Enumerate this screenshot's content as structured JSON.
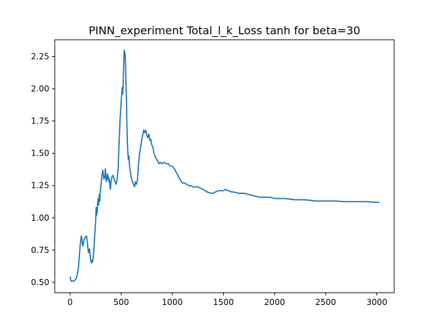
{
  "chart_data": {
    "type": "line",
    "title": "PINN_experiment Total_l_k_Loss tanh for beta=30",
    "xlabel": "",
    "ylabel": "",
    "xlim": [
      -150,
      3170
    ],
    "ylim": [
      0.42,
      2.38
    ],
    "xticks": [
      0,
      500,
      1000,
      1500,
      2000,
      2500,
      3000
    ],
    "xtick_labels": [
      "0",
      "500",
      "1000",
      "1500",
      "2000",
      "2500",
      "3000"
    ],
    "yticks": [
      0.5,
      0.75,
      1.0,
      1.25,
      1.5,
      1.75,
      2.0,
      2.25
    ],
    "ytick_labels": [
      "0.50",
      "0.75",
      "1.00",
      "1.25",
      "1.50",
      "1.75",
      "2.00",
      "2.25"
    ],
    "grid": false,
    "legend": "none",
    "series": [
      {
        "color": "#1f77b4",
        "x": [
          0,
          10,
          20,
          40,
          60,
          70,
          80,
          90,
          100,
          105,
          110,
          115,
          120,
          125,
          130,
          140,
          150,
          160,
          165,
          170,
          175,
          180,
          185,
          190,
          195,
          200,
          205,
          210,
          215,
          220,
          230,
          240,
          250,
          255,
          260,
          265,
          270,
          275,
          280,
          285,
          290,
          295,
          300,
          305,
          310,
          320,
          330,
          340,
          345,
          350,
          355,
          360,
          365,
          370,
          375,
          380,
          385,
          390,
          395,
          400,
          410,
          420,
          430,
          440,
          450,
          460,
          470,
          480,
          490,
          500,
          505,
          510,
          515,
          520,
          525,
          530,
          535,
          540,
          545,
          550,
          555,
          560,
          565,
          570,
          575,
          580,
          585,
          590,
          595,
          600,
          610,
          620,
          630,
          640,
          650,
          655,
          660,
          665,
          670,
          680,
          690,
          700,
          710,
          720,
          730,
          740,
          750,
          760,
          770,
          780,
          790,
          800,
          810,
          820,
          830,
          840,
          850,
          860,
          870,
          880,
          900,
          920,
          940,
          960,
          980,
          1000,
          1020,
          1040,
          1060,
          1080,
          1100,
          1120,
          1140,
          1160,
          1180,
          1200,
          1250,
          1300,
          1340,
          1380,
          1400,
          1420,
          1450,
          1480,
          1500,
          1520,
          1550,
          1580,
          1600,
          1650,
          1700,
          1750,
          1800,
          1850,
          1900,
          1950,
          2000,
          2100,
          2200,
          2300,
          2400,
          2500,
          2600,
          2700,
          2800,
          2900,
          3000,
          3020
        ],
        "values": [
          0.54,
          0.51,
          0.51,
          0.51,
          0.53,
          0.56,
          0.6,
          0.7,
          0.8,
          0.83,
          0.86,
          0.84,
          0.8,
          0.78,
          0.8,
          0.84,
          0.85,
          0.86,
          0.84,
          0.8,
          0.76,
          0.73,
          0.74,
          0.76,
          0.72,
          0.68,
          0.66,
          0.65,
          0.67,
          0.66,
          0.72,
          0.85,
          0.98,
          1.08,
          1.02,
          1.05,
          1.12,
          1.15,
          1.1,
          1.18,
          1.13,
          1.2,
          1.24,
          1.27,
          1.32,
          1.37,
          1.3,
          1.32,
          1.38,
          1.3,
          1.28,
          1.32,
          1.34,
          1.3,
          1.32,
          1.28,
          1.3,
          1.25,
          1.22,
          1.28,
          1.32,
          1.33,
          1.3,
          1.28,
          1.26,
          1.3,
          1.38,
          1.6,
          1.78,
          1.9,
          1.96,
          2.01,
          1.96,
          2.05,
          2.2,
          2.3,
          2.28,
          2.25,
          2.1,
          1.95,
          1.75,
          1.6,
          1.5,
          1.45,
          1.48,
          1.42,
          1.38,
          1.36,
          1.33,
          1.31,
          1.28,
          1.26,
          1.24,
          1.28,
          1.26,
          1.28,
          1.3,
          1.36,
          1.42,
          1.5,
          1.55,
          1.6,
          1.64,
          1.68,
          1.66,
          1.68,
          1.64,
          1.62,
          1.65,
          1.6,
          1.61,
          1.56,
          1.55,
          1.5,
          1.48,
          1.46,
          1.45,
          1.43,
          1.42,
          1.43,
          1.42,
          1.43,
          1.42,
          1.42,
          1.4,
          1.4,
          1.38,
          1.35,
          1.32,
          1.29,
          1.27,
          1.27,
          1.26,
          1.25,
          1.25,
          1.24,
          1.24,
          1.22,
          1.2,
          1.19,
          1.19,
          1.2,
          1.21,
          1.21,
          1.21,
          1.22,
          1.21,
          1.2,
          1.2,
          1.19,
          1.19,
          1.18,
          1.17,
          1.16,
          1.16,
          1.16,
          1.15,
          1.15,
          1.14,
          1.14,
          1.13,
          1.13,
          1.13,
          1.125,
          1.125,
          1.125,
          1.12,
          1.12
        ]
      }
    ]
  }
}
